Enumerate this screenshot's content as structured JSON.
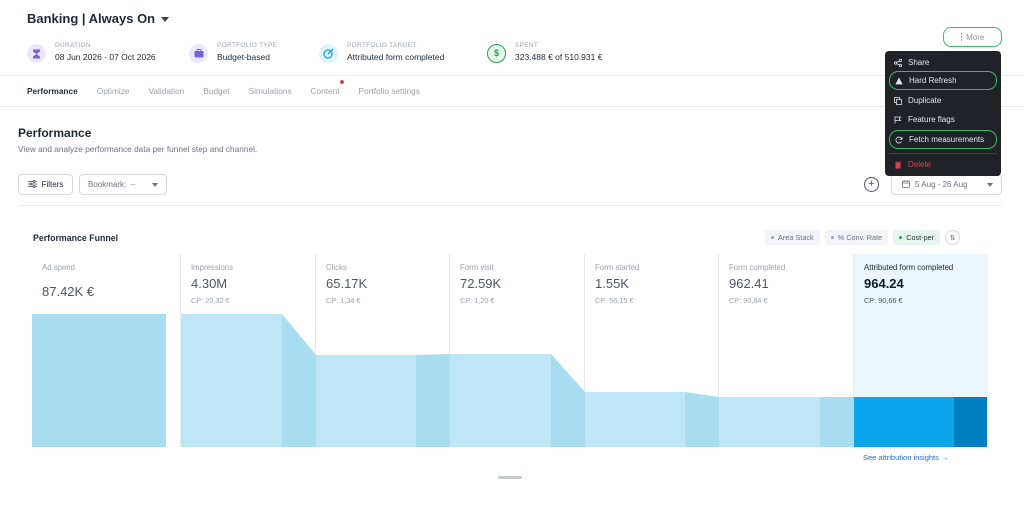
{
  "header": {
    "title": "Banking | Always On",
    "more_label": "More",
    "metrics": [
      {
        "label": "DURATION",
        "value": "08 Jun 2026 - 07 Oct 2026",
        "icon": "hourglass-icon",
        "color": "#7b61d6",
        "bg": "#ece8fb"
      },
      {
        "label": "PORTFOLIO TYPE",
        "value": "Budget-based",
        "icon": "briefcase-icon",
        "color": "#7b61d6",
        "bg": "#ece8fb"
      },
      {
        "label": "PORTFOLIO TARGET",
        "value": "Attributed form completed",
        "icon": "target-icon",
        "color": "#1ea4d8",
        "bg": "#dff3fb"
      },
      {
        "label": "SPENT",
        "value": "323.488 € of 510.931 €",
        "icon": "money-icon",
        "color": "#2e9e58",
        "bg": "#e6f6ec"
      }
    ]
  },
  "menu": {
    "items": [
      {
        "label": "Share",
        "icon": "share-icon"
      },
      {
        "label": "Hard Refresh",
        "icon": "warning-icon"
      },
      {
        "label": "Duplicate",
        "icon": "duplicate-icon"
      },
      {
        "label": "Feature flags",
        "icon": "flag-icon"
      },
      {
        "label": "Fetch measurements",
        "icon": "refresh-icon"
      },
      {
        "label": "Delete",
        "icon": "trash-icon"
      }
    ]
  },
  "tabs": [
    "Performance",
    "Optimize",
    "Validation",
    "Budget",
    "Simulations",
    "Content",
    "Portfolio settings"
  ],
  "section": {
    "title": "Performance",
    "subtitle": "View and analyze performance data per funnel step and channel.",
    "filters_label": "Filters",
    "bookmark_label": "Bookmark:",
    "bookmark_value": "--",
    "date_range": "5 Aug - 26 Aug"
  },
  "funnel": {
    "title": "Performance Funnel",
    "toggles": [
      {
        "label": "Area Stack",
        "active": false
      },
      {
        "label": "% Conv. Rate",
        "active": false
      },
      {
        "label": "Cost-per",
        "active": true
      }
    ],
    "insights_link": "See attribution insights →",
    "colors": {
      "light": "#bfe6f6",
      "mid": "#a7dcf1",
      "selected": "#0ba5ec",
      "selected_dark": "#0080c2",
      "selected_bg": "#eaf6fc"
    }
  },
  "chart_data": {
    "type": "bar",
    "title": "Performance Funnel",
    "categories": [
      "Ad spend",
      "Impressions",
      "Clicks",
      "Form visit",
      "Form started",
      "Form completed",
      "Attributed form completed"
    ],
    "display_values": [
      "87.42K €",
      "4.30M",
      "65.17K",
      "72.59K",
      "1.55K",
      "962.41",
      "964.24"
    ],
    "cost_per": [
      "",
      "CP: 20,32 €",
      "CP: 1,34 €",
      "CP: 1,20 €",
      "CP: 56,15 €",
      "CP: 90,84 €",
      "CP: 90,66 €"
    ],
    "selected_index": 6
  }
}
